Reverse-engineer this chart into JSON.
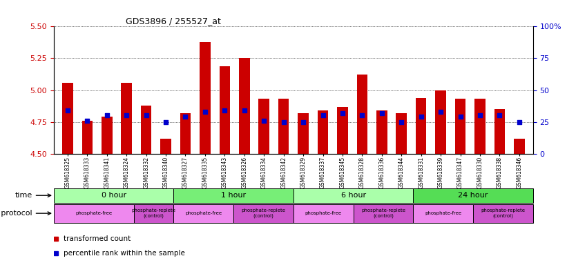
{
  "title": "GDS3896 / 255527_at",
  "samples": [
    "GSM618325",
    "GSM618333",
    "GSM618341",
    "GSM618324",
    "GSM618332",
    "GSM618340",
    "GSM618327",
    "GSM618335",
    "GSM618343",
    "GSM618326",
    "GSM618334",
    "GSM618342",
    "GSM618329",
    "GSM618337",
    "GSM618345",
    "GSM618328",
    "GSM618336",
    "GSM618344",
    "GSM618331",
    "GSM618339",
    "GSM618347",
    "GSM618330",
    "GSM618338",
    "GSM618346"
  ],
  "bar_values": [
    5.06,
    4.76,
    4.79,
    5.06,
    4.88,
    4.62,
    4.82,
    5.38,
    5.19,
    5.25,
    4.93,
    4.93,
    4.82,
    4.84,
    4.87,
    5.12,
    4.84,
    4.82,
    4.94,
    5.0,
    4.93,
    4.93,
    4.85,
    4.62
  ],
  "dot_values": [
    4.84,
    4.76,
    4.8,
    4.8,
    4.8,
    4.75,
    4.79,
    4.83,
    4.84,
    4.84,
    4.76,
    4.75,
    4.75,
    4.8,
    4.82,
    4.8,
    4.82,
    4.75,
    4.79,
    4.83,
    4.79,
    4.8,
    4.8,
    4.75
  ],
  "bar_color": "#cc0000",
  "dot_color": "#0000cc",
  "ylim_left": [
    4.5,
    5.5
  ],
  "yticks_left": [
    4.5,
    4.75,
    5.0,
    5.25,
    5.5
  ],
  "yticks_right": [
    0,
    25,
    50,
    75,
    100
  ],
  "time_groups": [
    {
      "label": "0 hour",
      "start": 0,
      "end": 6,
      "color": "#aaffaa"
    },
    {
      "label": "1 hour",
      "start": 6,
      "end": 12,
      "color": "#77ee77"
    },
    {
      "label": "6 hour",
      "start": 12,
      "end": 18,
      "color": "#aaffaa"
    },
    {
      "label": "24 hour",
      "start": 18,
      "end": 24,
      "color": "#55dd55"
    }
  ],
  "protocol_groups": [
    {
      "label": "phosphate-free",
      "start": 0,
      "end": 4,
      "color": "#ee88ee"
    },
    {
      "label": "phosphate-replete\n(control)",
      "start": 4,
      "end": 6,
      "color": "#cc55cc"
    },
    {
      "label": "phosphate-free",
      "start": 6,
      "end": 9,
      "color": "#ee88ee"
    },
    {
      "label": "phosphate-replete\n(control)",
      "start": 9,
      "end": 12,
      "color": "#cc55cc"
    },
    {
      "label": "phosphate-free",
      "start": 12,
      "end": 15,
      "color": "#ee88ee"
    },
    {
      "label": "phosphate-replete\n(control)",
      "start": 15,
      "end": 18,
      "color": "#cc55cc"
    },
    {
      "label": "phosphate-free",
      "start": 18,
      "end": 21,
      "color": "#ee88ee"
    },
    {
      "label": "phosphate-replete\n(control)",
      "start": 21,
      "end": 24,
      "color": "#cc55cc"
    }
  ],
  "legend_labels": [
    "transformed count",
    "percentile rank within the sample"
  ],
  "time_label": "time",
  "protocol_label": "growth protocol",
  "background_color": "#ffffff",
  "tick_label_color_left": "#cc0000",
  "tick_label_color_right": "#0000cc"
}
